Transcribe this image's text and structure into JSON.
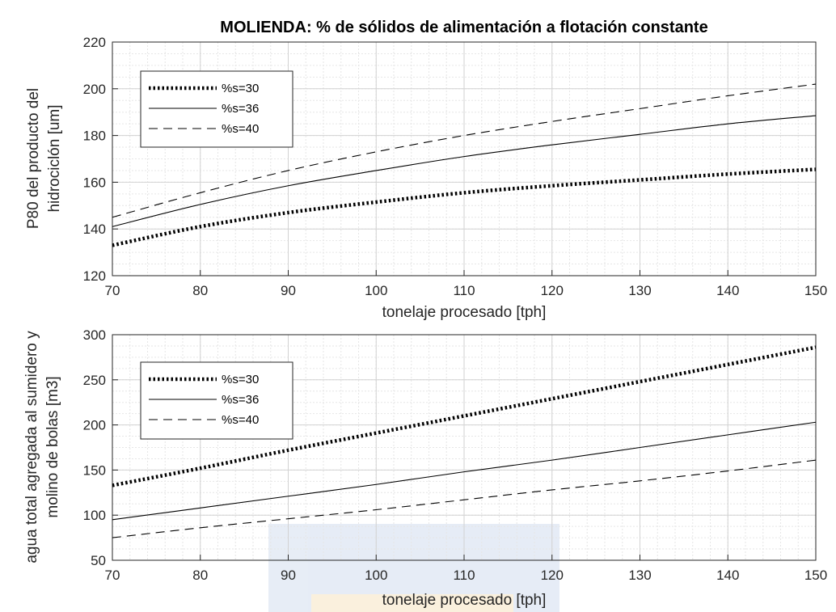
{
  "chart_data": [
    {
      "type": "line",
      "title": "MOLIENDA: % de sólidos de alimentación a flotación constante",
      "xlabel": "tonelaje procesado [tph]",
      "ylabel_lines": [
        "P80 del producto del",
        "hidrociclón [um]"
      ],
      "xlim": [
        70,
        150
      ],
      "ylim": [
        120,
        220
      ],
      "xticks": [
        70,
        80,
        90,
        100,
        110,
        120,
        130,
        140,
        150
      ],
      "yticks": [
        120,
        140,
        160,
        180,
        200,
        220
      ],
      "grid": true,
      "legend_position": "top-left",
      "x": [
        70,
        80,
        90,
        100,
        110,
        120,
        130,
        140,
        150
      ],
      "series": [
        {
          "name": "%s=30",
          "style": "dotted-thick",
          "values": [
            133,
            141,
            147,
            151.5,
            155.5,
            158.5,
            161,
            163.5,
            165.5
          ]
        },
        {
          "name": "%s=36",
          "style": "solid",
          "values": [
            141,
            150.5,
            158.5,
            165,
            171,
            176,
            180.5,
            185,
            188.5
          ]
        },
        {
          "name": "%s=40",
          "style": "dashed",
          "values": [
            145,
            155.5,
            165,
            173,
            180,
            186,
            191.5,
            197,
            202
          ]
        }
      ]
    },
    {
      "type": "line",
      "title": "",
      "xlabel": "tonelaje procesado  [tph]",
      "ylabel_lines": [
        "agua total agregada al sumidero y",
        "molino de bolas [m3]"
      ],
      "xlim": [
        70,
        150
      ],
      "ylim": [
        50,
        300
      ],
      "xticks": [
        70,
        80,
        90,
        100,
        110,
        120,
        130,
        140,
        150
      ],
      "yticks": [
        50,
        100,
        150,
        200,
        250,
        300
      ],
      "grid": true,
      "legend_position": "top-left",
      "x": [
        70,
        80,
        90,
        100,
        110,
        120,
        130,
        140,
        150
      ],
      "series": [
        {
          "name": "%s=30",
          "style": "dotted-thick",
          "values": [
            133,
            152,
            172,
            191,
            210,
            229,
            248,
            267,
            286
          ]
        },
        {
          "name": "%s=36",
          "style": "solid",
          "values": [
            95,
            108,
            121,
            134,
            148,
            161,
            175,
            189,
            203
          ]
        },
        {
          "name": "%s=40",
          "style": "dashed",
          "values": [
            75,
            86,
            96,
            106,
            117,
            128,
            138,
            149,
            161
          ]
        }
      ]
    }
  ]
}
